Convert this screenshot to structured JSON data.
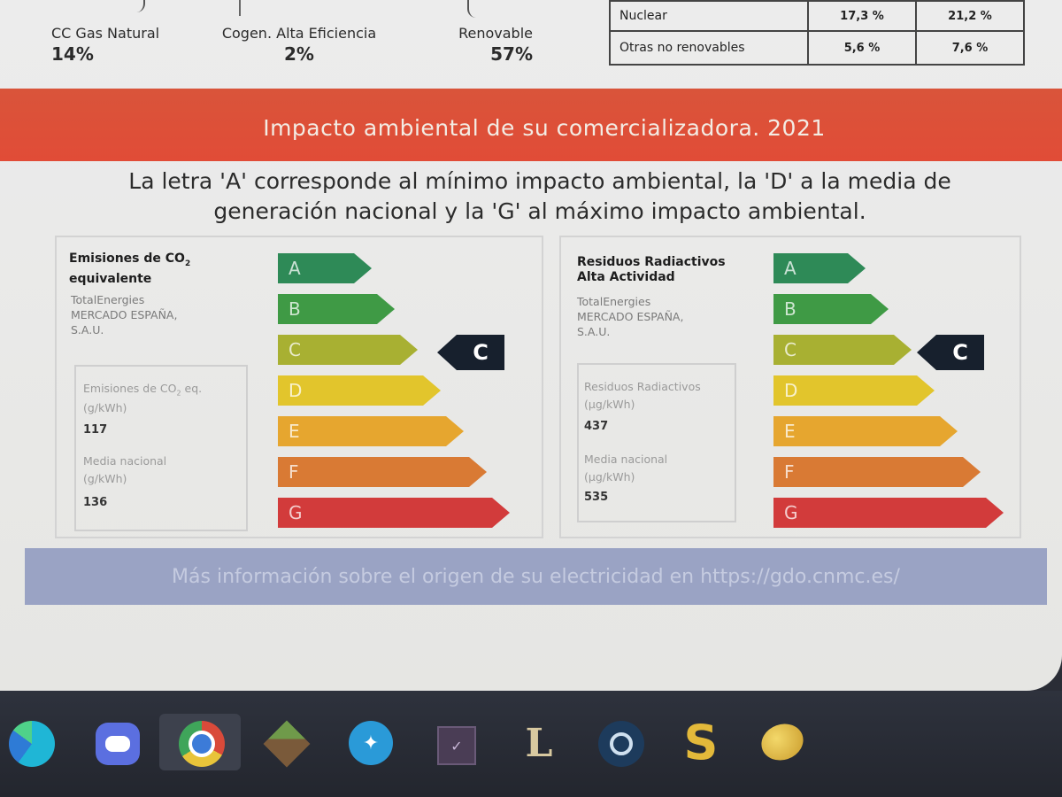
{
  "source_breakdown": [
    {
      "label": "CC Gas Natural",
      "value": "14%"
    },
    {
      "label": "Cogen. Alta Eficiencia",
      "value": "2%"
    },
    {
      "label": "Renovable",
      "value": "57%"
    }
  ],
  "mix_table": [
    {
      "source": "Nuclear",
      "company": "17,3 %",
      "national": "21,2 %"
    },
    {
      "source": "Otras no renovables",
      "company": "5,6 %",
      "national": "7,6 %"
    }
  ],
  "banner": {
    "title": "Impacto ambiental de su comercializadora. 2021"
  },
  "intro": {
    "text": "La letra 'A' corresponde al mínimo impacto ambiental, la 'D' a la media de generación nacional y la 'G' al máximo impacto ambiental."
  },
  "scale": {
    "letters": [
      "A",
      "B",
      "C",
      "D",
      "E",
      "F",
      "G"
    ],
    "colors": [
      "#2e8a57",
      "#3f9a45",
      "#a8b032",
      "#e2c52c",
      "#e6a62f",
      "#d97a34",
      "#d23b3b"
    ]
  },
  "co2_panel": {
    "title_1": "Emisiones de CO",
    "title_sub": "2",
    "title_2": "equivalente",
    "company_1": "TotalEnergies",
    "company_2": "MERCADO ESPAÑA,",
    "company_3": "S.A.U.",
    "metric_label_1": "Emisiones de CO",
    "metric_sub": "2",
    "metric_label_1b": " eq.",
    "metric_unit": "(g/kWh)",
    "metric_value": "117",
    "national_label": "Media nacional",
    "national_unit": "(g/kWh)",
    "national_value": "136",
    "rating": "C"
  },
  "radio_panel": {
    "title_1": "Residuos Radiactivos",
    "title_2": "Alta Actividad",
    "company_1": "TotalEnergies",
    "company_2": "MERCADO ESPAÑA,",
    "company_3": "S.A.U.",
    "metric_label": "Residuos Radiactivos",
    "metric_unit": "(µg/kWh)",
    "metric_value": "437",
    "national_label": "Media nacional",
    "national_unit": "(µg/kWh)",
    "national_value": "535",
    "rating": "C"
  },
  "info": {
    "text": "Más información sobre el origen de su electricidad en https://gdo.cnmc.es/"
  },
  "taskbar": {
    "icons": [
      "edge-icon",
      "discord-icon",
      "chrome-icon",
      "minecraft-icon",
      "vpn-icon",
      "app-icon",
      "league-icon",
      "steam-icon",
      "s-app-icon",
      "game-icon"
    ]
  }
}
